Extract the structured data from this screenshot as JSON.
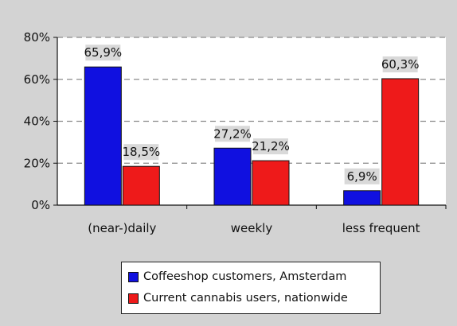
{
  "chart_data": {
    "type": "bar",
    "categories": [
      "(near-)daily",
      "weekly",
      "less frequent"
    ],
    "series": [
      {
        "name": "Coffeeshop customers, Amsterdam",
        "color": "#1010e0",
        "values": [
          65.9,
          27.2,
          6.9
        ],
        "labels": [
          "65,9%",
          "27,2%",
          "6,9%"
        ]
      },
      {
        "name": "Current cannabis users, nationwide",
        "color": "#ee1a1a",
        "values": [
          18.5,
          21.2,
          60.3
        ],
        "labels": [
          "18,5%",
          "21,2%",
          "60,3%"
        ]
      }
    ],
    "yticks": [
      "0%",
      "20%",
      "40%",
      "60%",
      "80%"
    ],
    "ylim": [
      0,
      80
    ],
    "grid": "dashed horizontal",
    "legend_position": "bottom",
    "title": "",
    "xlabel": "",
    "ylabel": ""
  }
}
